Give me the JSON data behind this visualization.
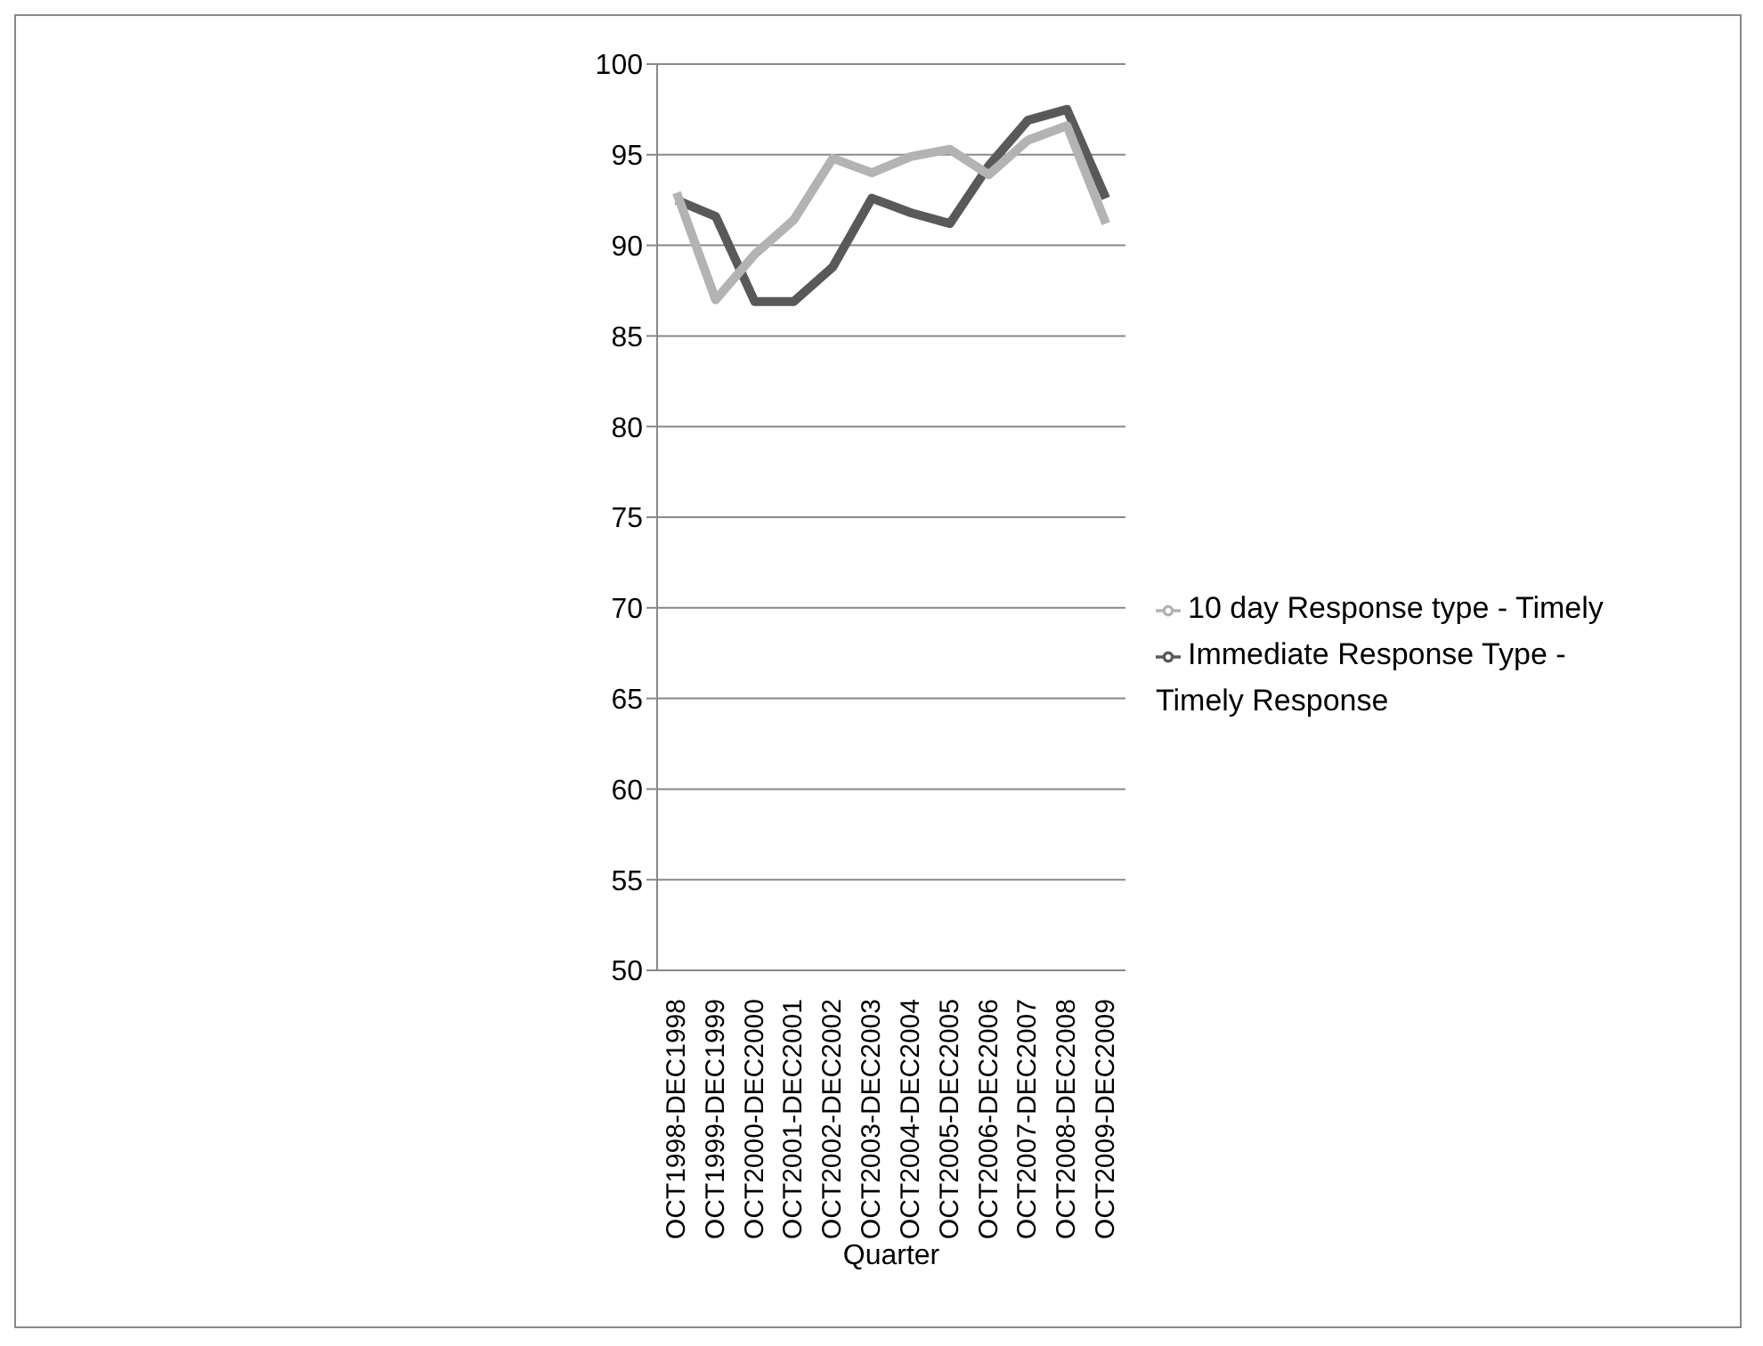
{
  "chart_data": {
    "type": "line",
    "xlabel": "Quarter",
    "categories": [
      "OCT1998-DEC1998",
      "OCT1999-DEC1999",
      "OCT2000-DEC2000",
      "OCT2001-DEC2001",
      "OCT2002-DEC2002",
      "OCT2003-DEC2003",
      "OCT2004-DEC2004",
      "OCT2005-DEC2005",
      "OCT2006-DEC2006",
      "OCT2007-DEC2007",
      "OCT2008-DEC2008",
      "OCT2009-DEC2009"
    ],
    "series": [
      {
        "name": "Immediate Response Type - Timely Response",
        "color": "#595959",
        "values": [
          92.5,
          91.6,
          86.9,
          86.9,
          88.8,
          92.6,
          91.8,
          91.2,
          94.4,
          96.9,
          97.5,
          92.6
        ]
      },
      {
        "name": "10 day Response type - Timely",
        "color": "#b3b3b3",
        "values": [
          92.9,
          87.0,
          89.5,
          91.4,
          94.8,
          94.0,
          94.9,
          95.3,
          93.9,
          95.8,
          96.6,
          91.2
        ]
      }
    ],
    "ylim": [
      50,
      100
    ],
    "yticks": [
      50,
      55,
      60,
      65,
      70,
      75,
      80,
      85,
      90,
      95,
      100
    ],
    "grid": "y",
    "legend": "right",
    "marker": "none",
    "line_style": "solid"
  }
}
